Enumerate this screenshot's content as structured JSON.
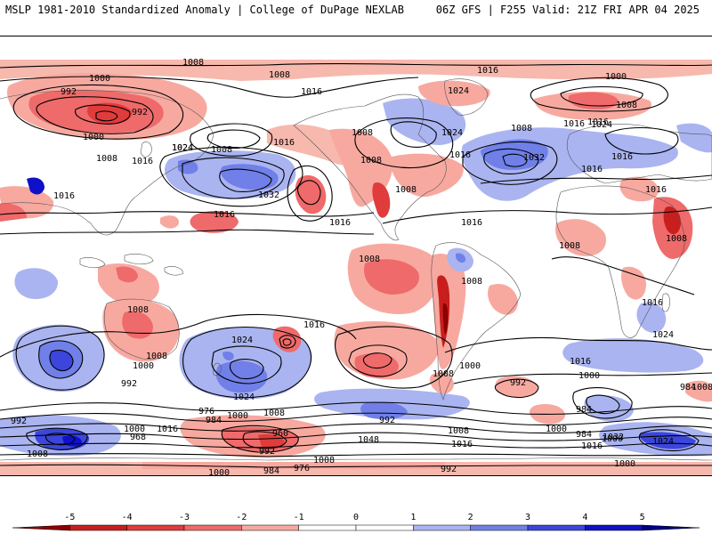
{
  "header": {
    "left_title": "MSLP 1981-2010 Standardized Anomaly | College of DuPage NEXLAB",
    "right_title": "06Z GFS | F255 Valid: 21Z FRI APR 04 2025"
  },
  "colorbar": {
    "ticks": [
      "-5",
      "-4",
      "-3",
      "-2",
      "-1",
      "0",
      "1",
      "2",
      "3",
      "4",
      "5"
    ],
    "colors": [
      "#8b0000",
      "#c81e1e",
      "#e03c3c",
      "#ef6a6a",
      "#f7a9a0",
      "#ffffff",
      "#ffffff",
      "#aab4f0",
      "#7080e8",
      "#3c46dc",
      "#1010c8",
      "#000080"
    ]
  },
  "contour_labels": [
    {
      "id": "c1",
      "text": "1008"
    },
    {
      "id": "c2",
      "text": "1000"
    },
    {
      "id": "c3",
      "text": "1008"
    },
    {
      "id": "c4",
      "text": "992"
    },
    {
      "id": "c5",
      "text": "992"
    },
    {
      "id": "c6",
      "text": "1000"
    },
    {
      "id": "c7",
      "text": "1016"
    },
    {
      "id": "c8",
      "text": "1024"
    },
    {
      "id": "c9",
      "text": "1000"
    },
    {
      "id": "c10",
      "text": "1016"
    },
    {
      "id": "c11",
      "text": "1008"
    },
    {
      "id": "c12",
      "text": "1016"
    },
    {
      "id": "c13",
      "text": "1016"
    },
    {
      "id": "c14",
      "text": "1008"
    },
    {
      "id": "c15",
      "text": "1032"
    },
    {
      "id": "c16",
      "text": "1016"
    },
    {
      "id": "c17",
      "text": "1016"
    },
    {
      "id": "c18",
      "text": "1024"
    },
    {
      "id": "c19",
      "text": "1008"
    },
    {
      "id": "c20",
      "text": "1008"
    },
    {
      "id": "c21",
      "text": "1008"
    },
    {
      "id": "c22",
      "text": "1024"
    },
    {
      "id": "c23",
      "text": "1016"
    },
    {
      "id": "c24",
      "text": "1032"
    },
    {
      "id": "c25",
      "text": "1016"
    },
    {
      "id": "c26",
      "text": "1008"
    },
    {
      "id": "c27",
      "text": "1008"
    },
    {
      "id": "c28",
      "text": "1016"
    },
    {
      "id": "c29",
      "text": "1024"
    },
    {
      "id": "c30",
      "text": "1016"
    },
    {
      "id": "c31",
      "text": "1016"
    },
    {
      "id": "c32",
      "text": "1008"
    },
    {
      "id": "c33",
      "text": "1008"
    },
    {
      "id": "c34",
      "text": "1008"
    },
    {
      "id": "c35",
      "text": "1016"
    },
    {
      "id": "c36",
      "text": "1008"
    },
    {
      "id": "c37",
      "text": "1016"
    },
    {
      "id": "c38",
      "text": "1016"
    },
    {
      "id": "c39",
      "text": "1024"
    },
    {
      "id": "c40",
      "text": "1016"
    },
    {
      "id": "c41",
      "text": "1024"
    },
    {
      "id": "c42",
      "text": "1000"
    },
    {
      "id": "c43",
      "text": "1008"
    },
    {
      "id": "c44",
      "text": "992"
    },
    {
      "id": "c45",
      "text": "1016"
    },
    {
      "id": "c46",
      "text": "1024"
    },
    {
      "id": "c47",
      "text": "1024"
    },
    {
      "id": "c48",
      "text": "1008"
    },
    {
      "id": "c49",
      "text": "1000"
    },
    {
      "id": "c50",
      "text": "992"
    },
    {
      "id": "c51",
      "text": "1008"
    },
    {
      "id": "c52",
      "text": "1000"
    },
    {
      "id": "c53",
      "text": "1016"
    },
    {
      "id": "c54",
      "text": "984"
    },
    {
      "id": "c55",
      "text": "984"
    },
    {
      "id": "c56",
      "text": "992"
    },
    {
      "id": "c57",
      "text": "976"
    },
    {
      "id": "c58",
      "text": "984"
    },
    {
      "id": "c59",
      "text": "1000"
    },
    {
      "id": "c60",
      "text": "1008"
    },
    {
      "id": "c61",
      "text": "1000"
    },
    {
      "id": "c62",
      "text": "1016"
    },
    {
      "id": "c63",
      "text": "968"
    },
    {
      "id": "c64",
      "text": "960"
    },
    {
      "id": "c65",
      "text": "992"
    },
    {
      "id": "c66",
      "text": "1048"
    },
    {
      "id": "c67",
      "text": "1008"
    },
    {
      "id": "c68",
      "text": "1000"
    },
    {
      "id": "c69",
      "text": "984"
    },
    {
      "id": "c70",
      "text": "976"
    },
    {
      "id": "c71",
      "text": "1008"
    },
    {
      "id": "c72",
      "text": "992"
    },
    {
      "id": "c73",
      "text": "1016"
    },
    {
      "id": "c74",
      "text": "1000"
    },
    {
      "id": "c75",
      "text": "992"
    },
    {
      "id": "c76",
      "text": "984"
    },
    {
      "id": "c77",
      "text": "1008"
    },
    {
      "id": "c78",
      "text": "1016"
    },
    {
      "id": "c79",
      "text": "1032"
    },
    {
      "id": "c80",
      "text": "1024"
    },
    {
      "id": "c81",
      "text": "1000"
    },
    {
      "id": "c82",
      "text": "1008"
    },
    {
      "id": "c83",
      "text": "1000"
    }
  ]
}
